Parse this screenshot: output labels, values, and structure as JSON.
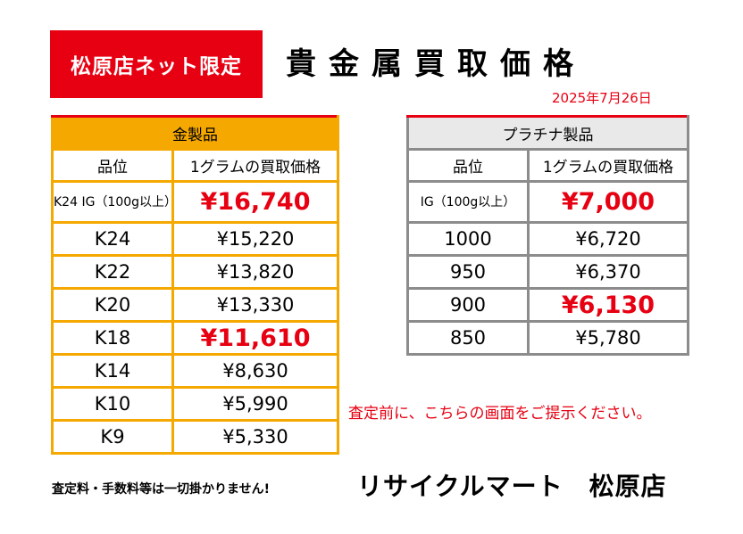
{
  "badge": "松原店ネット限定",
  "title": "貴金属買取価格",
  "date": "2025年7月26日",
  "gold": {
    "header": "金製品",
    "col_grade": "品位",
    "col_price": "1グラムの買取価格",
    "rows": [
      {
        "grade": "K24 IG（100g以上）",
        "price": "¥16,740",
        "highlight": true
      },
      {
        "grade": "K24",
        "price": "¥15,220",
        "highlight": false
      },
      {
        "grade": "K22",
        "price": "¥13,820",
        "highlight": false
      },
      {
        "grade": "K20",
        "price": "¥13,330",
        "highlight": false
      },
      {
        "grade": "K18",
        "price": "¥11,610",
        "highlight": true
      },
      {
        "grade": "K14",
        "price": "¥8,630",
        "highlight": false
      },
      {
        "grade": "K10",
        "price": "¥5,990",
        "highlight": false
      },
      {
        "grade": "K9",
        "price": "¥5,330",
        "highlight": false
      }
    ]
  },
  "platinum": {
    "header": "プラチナ製品",
    "col_grade": "品位",
    "col_price": "1グラムの買取価格",
    "rows": [
      {
        "grade": "IG（100g以上）",
        "price": "¥7,000",
        "highlight": true
      },
      {
        "grade": "1000",
        "price": "¥6,720",
        "highlight": false
      },
      {
        "grade": "950",
        "price": "¥6,370",
        "highlight": false
      },
      {
        "grade": "900",
        "price": "¥6,130",
        "highlight": true
      },
      {
        "grade": "850",
        "price": "¥5,780",
        "highlight": false
      }
    ]
  },
  "notice": "査定前に、こちらの画面をご提示ください。",
  "fees_note": "査定料・手数料等は一切掛かりません!",
  "store_name": "リサイクルマート　松原店",
  "colors": {
    "red": "#e60012",
    "gold": "#f5a800",
    "gray": "#8c8c8c"
  }
}
